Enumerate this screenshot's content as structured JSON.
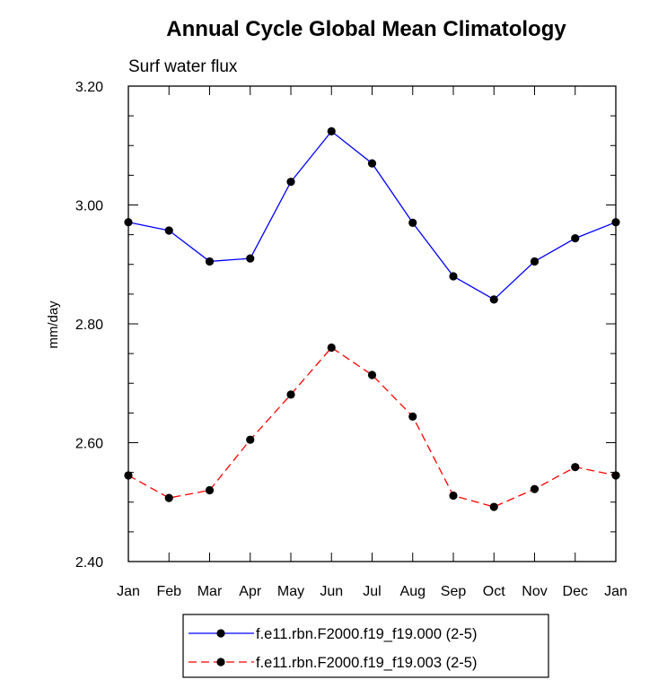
{
  "chart_data": {
    "type": "line",
    "title": "Annual Cycle Global Mean Climatology",
    "subtitle": "Surf water flux",
    "ylabel": "mm/day",
    "xlabel": "",
    "x": [
      "Jan",
      "Feb",
      "Mar",
      "Apr",
      "May",
      "Jun",
      "Jul",
      "Aug",
      "Sep",
      "Oct",
      "Nov",
      "Dec",
      "Jan"
    ],
    "ylim": [
      2.4,
      3.2
    ],
    "yticks": [
      "2.40",
      "2.60",
      "2.80",
      "3.00",
      "3.20"
    ],
    "grid": false,
    "legend_position": "bottom",
    "series": [
      {
        "name": "f.e11.rbn.F2000.f19_f19.000 (2-5)",
        "color": "#0000ff",
        "dash": "solid",
        "marker": "circle",
        "values": [
          2.971,
          2.957,
          2.905,
          2.91,
          3.039,
          3.124,
          3.07,
          2.97,
          2.88,
          2.841,
          2.905,
          2.944,
          2.971
        ]
      },
      {
        "name": "f.e11.rbn.F2000.f19_f19.003 (2-5)",
        "color": "#ff0000",
        "dash": "dashed",
        "marker": "circle",
        "values": [
          2.545,
          2.507,
          2.52,
          2.605,
          2.681,
          2.76,
          2.714,
          2.644,
          2.511,
          2.492,
          2.522,
          2.559,
          2.545
        ]
      }
    ]
  }
}
